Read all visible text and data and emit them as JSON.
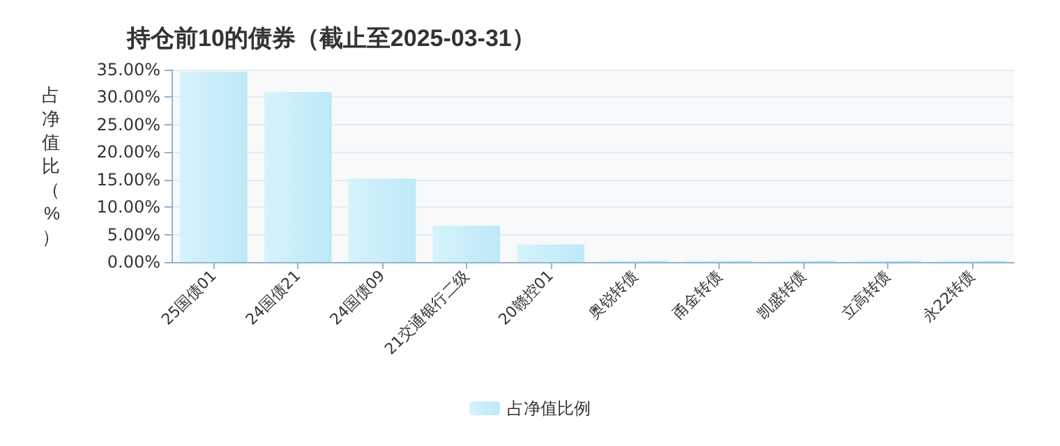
{
  "chart_data": {
    "type": "bar",
    "title": "持仓前10的债券（截止至2025-03-31）",
    "ylabel": "占净值比（%）",
    "categories": [
      "25国债01",
      "24国债21",
      "24国债09",
      "21交通银行二级",
      "20赣控01",
      "奥锐转债",
      "甬金转债",
      "凯盛转债",
      "立高转债",
      "永22转债"
    ],
    "series": [
      {
        "name": "占净值比例",
        "color": "#bde9f7",
        "values": [
          34.6,
          30.9,
          15.2,
          6.6,
          3.2,
          0.2,
          0.2,
          0.2,
          0.2,
          0.2
        ]
      }
    ],
    "ylim": [
      0,
      35
    ],
    "yticks": [
      {
        "value": 0,
        "label": "0.00%"
      },
      {
        "value": 5,
        "label": "5.00%"
      },
      {
        "value": 10,
        "label": "10.00%"
      },
      {
        "value": 15,
        "label": "15.00%"
      },
      {
        "value": 20,
        "label": "20.00%"
      },
      {
        "value": 25,
        "label": "25.00%"
      },
      {
        "value": 30,
        "label": "30.00%"
      },
      {
        "value": 35,
        "label": "35.00%"
      }
    ],
    "grid": "y",
    "legend": "bottom"
  }
}
